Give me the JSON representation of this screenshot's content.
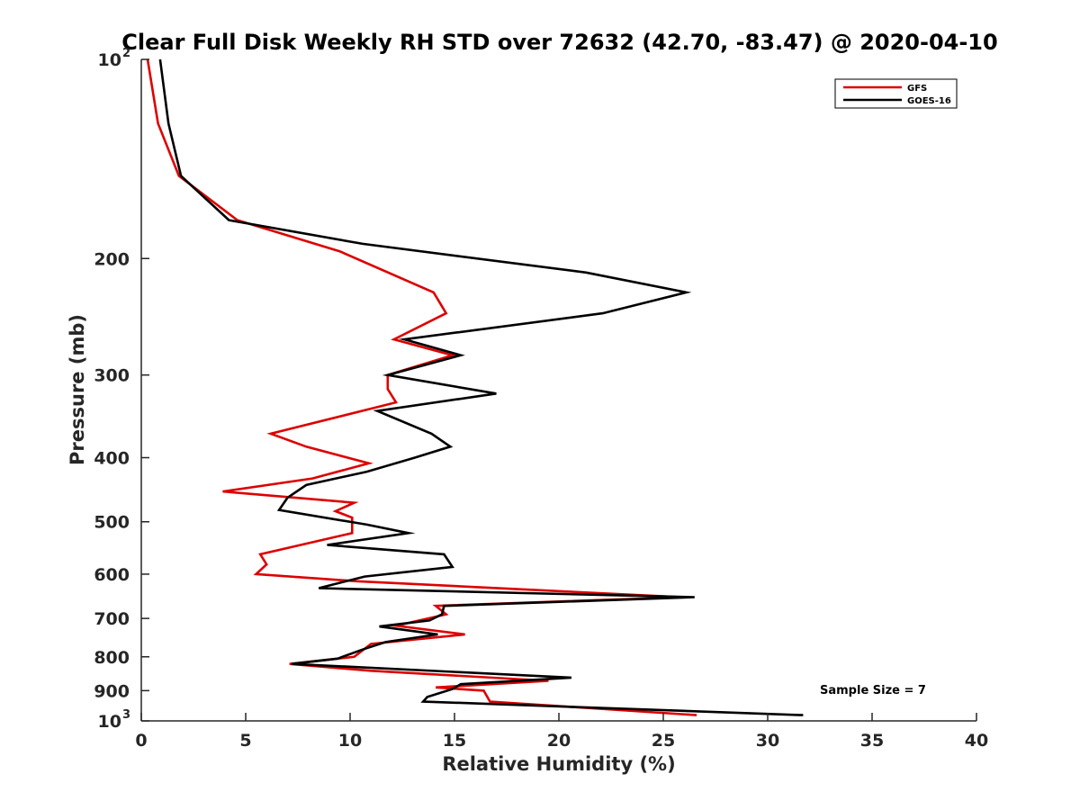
{
  "chart_data": {
    "type": "line",
    "title": "Clear Full Disk Weekly RH STD over 72632 (42.70, -83.47) @ 2020-04-10",
    "xlabel": "Relative Humidity (%)",
    "ylabel": "Pressure (mb)",
    "xlim": [
      0,
      40
    ],
    "ylim": [
      100,
      1000
    ],
    "y_scale": "log",
    "y_reversed": true,
    "xticks": [
      "0",
      "5",
      "10",
      "15",
      "20",
      "25",
      "30",
      "35",
      "40"
    ],
    "yticks": [
      {
        "value": 100,
        "base": "10",
        "exp": "2"
      },
      {
        "value": 200,
        "label": "200"
      },
      {
        "value": 300,
        "label": "300"
      },
      {
        "value": 400,
        "label": "400"
      },
      {
        "value": 500,
        "label": "500"
      },
      {
        "value": 600,
        "label": "600"
      },
      {
        "value": 700,
        "label": "700"
      },
      {
        "value": 800,
        "label": "800"
      },
      {
        "value": 900,
        "label": "900"
      },
      {
        "value": 1000,
        "base": "10",
        "exp": "3"
      }
    ],
    "grid": false,
    "legend_position": "top-right",
    "annotation": "Sample Size = 7",
    "series": [
      {
        "name": "GFS",
        "color": "#dd0000",
        "points": [
          [
            0.3,
            100
          ],
          [
            0.8,
            125
          ],
          [
            1.8,
            150
          ],
          [
            4.6,
            175
          ],
          [
            9.5,
            195
          ],
          [
            14.0,
            225
          ],
          [
            14.6,
            242
          ],
          [
            12.1,
            265
          ],
          [
            14.9,
            280
          ],
          [
            11.8,
            300
          ],
          [
            11.8,
            315
          ],
          [
            12.2,
            330
          ],
          [
            6.2,
            368
          ],
          [
            7.9,
            385
          ],
          [
            10.9,
            408
          ],
          [
            8.2,
            430
          ],
          [
            3.9,
            450
          ],
          [
            10.2,
            468
          ],
          [
            9.3,
            482
          ],
          [
            10.1,
            493
          ],
          [
            10.1,
            520
          ],
          [
            5.7,
            560
          ],
          [
            6.0,
            580
          ],
          [
            5.5,
            600
          ],
          [
            10.3,
            615
          ],
          [
            25.9,
            650
          ],
          [
            14.1,
            670
          ],
          [
            14.6,
            690
          ],
          [
            12.2,
            718
          ],
          [
            15.5,
            740
          ],
          [
            11.0,
            765
          ],
          [
            10.2,
            800
          ],
          [
            7.1,
            820
          ],
          [
            11.0,
            840
          ],
          [
            19.5,
            870
          ],
          [
            14.1,
            890
          ],
          [
            16.4,
            900
          ],
          [
            16.7,
            935
          ],
          [
            26.6,
            980
          ]
        ]
      },
      {
        "name": "GOES-16",
        "color": "#000000",
        "points": [
          [
            0.9,
            100
          ],
          [
            1.3,
            125
          ],
          [
            1.9,
            150
          ],
          [
            4.2,
            175
          ],
          [
            10.6,
            190
          ],
          [
            21.3,
            210
          ],
          [
            26.1,
            225
          ],
          [
            22.1,
            242
          ],
          [
            12.6,
            265
          ],
          [
            15.3,
            280
          ],
          [
            11.8,
            300
          ],
          [
            17.0,
            320
          ],
          [
            11.3,
            340
          ],
          [
            13.9,
            368
          ],
          [
            14.8,
            385
          ],
          [
            13.1,
            400
          ],
          [
            10.8,
            420
          ],
          [
            7.9,
            440
          ],
          [
            7.0,
            460
          ],
          [
            6.6,
            480
          ],
          [
            10.8,
            505
          ],
          [
            12.8,
            520
          ],
          [
            8.9,
            542
          ],
          [
            14.5,
            560
          ],
          [
            14.9,
            585
          ],
          [
            10.7,
            605
          ],
          [
            8.5,
            630
          ],
          [
            26.5,
            650
          ],
          [
            14.5,
            670
          ],
          [
            14.4,
            690
          ],
          [
            13.8,
            705
          ],
          [
            11.4,
            720
          ],
          [
            14.2,
            740
          ],
          [
            11.7,
            760
          ],
          [
            10.6,
            780
          ],
          [
            9.4,
            805
          ],
          [
            7.2,
            820
          ],
          [
            20.6,
            860
          ],
          [
            15.3,
            880
          ],
          [
            14.9,
            895
          ],
          [
            13.7,
            920
          ],
          [
            13.5,
            935
          ],
          [
            31.7,
            980
          ]
        ]
      }
    ]
  }
}
